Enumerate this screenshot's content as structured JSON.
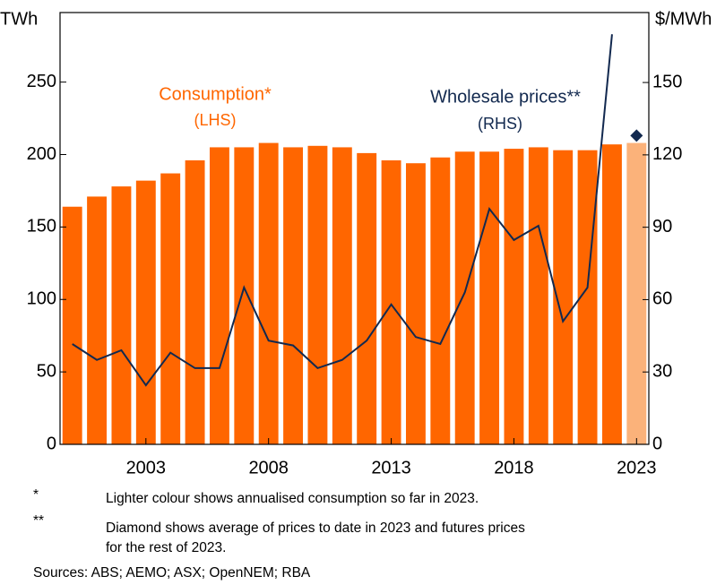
{
  "chart_data": {
    "type": "bar-line",
    "left_unit": "TWh",
    "right_unit": "$/MWh",
    "x": [
      2000,
      2001,
      2002,
      2003,
      2004,
      2005,
      2006,
      2007,
      2008,
      2009,
      2010,
      2011,
      2012,
      2013,
      2014,
      2015,
      2016,
      2017,
      2018,
      2019,
      2020,
      2021,
      2022,
      2023
    ],
    "xlim": [
      1999.5,
      2023.5
    ],
    "xticks": [
      2003,
      2008,
      2013,
      2018,
      2023
    ],
    "ylim": [
      0,
      298
    ],
    "yticks": [
      0,
      50,
      100,
      150,
      200,
      250
    ],
    "y2lim": [
      0,
      179
    ],
    "y2ticks": [
      0,
      30,
      60,
      90,
      120,
      150
    ],
    "series": [
      {
        "name": "Consumption*",
        "type": "bar",
        "color": "#ff6600",
        "colors": [
          "#ff6600",
          "#ff6600",
          "#ff6600",
          "#ff6600",
          "#ff6600",
          "#ff6600",
          "#ff6600",
          "#ff6600",
          "#ff6600",
          "#ff6600",
          "#ff6600",
          "#ff6600",
          "#ff6600",
          "#ff6600",
          "#ff6600",
          "#ff6600",
          "#ff6600",
          "#ff6600",
          "#ff6600",
          "#ff6600",
          "#ff6600",
          "#ff6600",
          "#ff6600",
          "#fbb27a"
        ],
        "values": [
          164,
          171,
          178,
          182,
          187,
          196,
          205,
          205,
          208,
          205,
          206,
          205,
          201,
          196,
          194,
          198,
          202,
          202,
          204,
          205,
          203,
          203,
          207,
          208
        ]
      },
      {
        "name": "Wholesale prices**",
        "type": "line",
        "axis": "y2",
        "color": "#12294f",
        "values": [
          41.6,
          35,
          39,
          24.5,
          38,
          31.6,
          31.6,
          65,
          43,
          41,
          31.6,
          35,
          43,
          58,
          44.5,
          41.6,
          63,
          97.6,
          84.7,
          90.6,
          51,
          65,
          170,
          null
        ]
      },
      {
        "type": "diamond",
        "axis": "y2",
        "color": "#12294f",
        "values": [
          null,
          null,
          null,
          null,
          null,
          null,
          null,
          null,
          null,
          null,
          null,
          null,
          null,
          null,
          null,
          null,
          null,
          null,
          null,
          null,
          null,
          null,
          null,
          128
        ]
      }
    ],
    "annotations": [
      "(LHS)",
      "(RHS)"
    ],
    "footnotes": [
      {
        "mark": "*",
        "lines": [
          "Lighter colour shows annualised consumption so far in 2023."
        ]
      },
      {
        "mark": "**",
        "lines": [
          "Diamond shows average of prices to date in 2023 and futures prices",
          "for the rest of 2023."
        ]
      }
    ],
    "sources": "Sources: ABS; AEMO; ASX; OpenNEM; RBA"
  }
}
